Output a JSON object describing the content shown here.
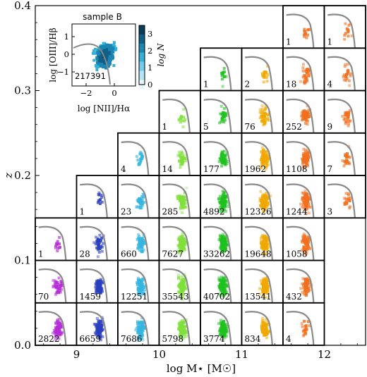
{
  "chart_data": {
    "type": "scatter",
    "title": "",
    "xlabel": "log M⋆ [M☉]",
    "ylabel": "z",
    "x_ticks": [
      "9",
      "10",
      "11",
      "12"
    ],
    "y_ticks": [
      "0.0",
      "0.1",
      "0.2",
      "0.3",
      "0.4"
    ],
    "xlim": [
      8.5,
      12.5
    ],
    "ylim": [
      0.0,
      0.4
    ],
    "x_bin_edges": [
      8.5,
      9.0,
      9.5,
      10.0,
      10.5,
      11.0,
      11.5,
      12.0,
      12.5
    ],
    "z_bin_edges": [
      0.0,
      0.05,
      0.1,
      0.15,
      0.2,
      0.25,
      0.3,
      0.35,
      0.4
    ],
    "cells": [
      {
        "col": 0,
        "row": 0,
        "count": "2822",
        "color": "#b52ed6"
      },
      {
        "col": 1,
        "row": 0,
        "count": "6659",
        "color": "#2a3fbf"
      },
      {
        "col": 2,
        "row": 0,
        "count": "7686",
        "color": "#35b6e0"
      },
      {
        "col": 3,
        "row": 0,
        "count": "5798",
        "color": "#7fe03a"
      },
      {
        "col": 4,
        "row": 0,
        "count": "3774",
        "color": "#1ec21e"
      },
      {
        "col": 5,
        "row": 0,
        "count": "834",
        "color": "#f0a800"
      },
      {
        "col": 6,
        "row": 0,
        "count": "4",
        "color": "#f07020"
      },
      {
        "col": 0,
        "row": 1,
        "count": "70",
        "color": "#b52ed6"
      },
      {
        "col": 1,
        "row": 1,
        "count": "1459",
        "color": "#2a3fbf"
      },
      {
        "col": 2,
        "row": 1,
        "count": "12251",
        "color": "#35b6e0"
      },
      {
        "col": 3,
        "row": 1,
        "count": "35543",
        "color": "#7fe03a"
      },
      {
        "col": 4,
        "row": 1,
        "count": "40702",
        "color": "#1ec21e"
      },
      {
        "col": 5,
        "row": 1,
        "count": "13541",
        "color": "#f0a800"
      },
      {
        "col": 6,
        "row": 1,
        "count": "432",
        "color": "#f07020"
      },
      {
        "col": 0,
        "row": 2,
        "count": "1",
        "color": "#b52ed6"
      },
      {
        "col": 1,
        "row": 2,
        "count": "28",
        "color": "#2a3fbf"
      },
      {
        "col": 2,
        "row": 2,
        "count": "660",
        "color": "#35b6e0"
      },
      {
        "col": 3,
        "row": 2,
        "count": "7627",
        "color": "#7fe03a"
      },
      {
        "col": 4,
        "row": 2,
        "count": "33262",
        "color": "#1ec21e"
      },
      {
        "col": 5,
        "row": 2,
        "count": "19648",
        "color": "#f0a800"
      },
      {
        "col": 6,
        "row": 2,
        "count": "1058",
        "color": "#f07020"
      },
      {
        "col": 1,
        "row": 3,
        "count": "1",
        "color": "#2a3fbf"
      },
      {
        "col": 2,
        "row": 3,
        "count": "23",
        "color": "#35b6e0"
      },
      {
        "col": 3,
        "row": 3,
        "count": "285",
        "color": "#7fe03a"
      },
      {
        "col": 4,
        "row": 3,
        "count": "4892",
        "color": "#1ec21e"
      },
      {
        "col": 5,
        "row": 3,
        "count": "12326",
        "color": "#f0a800"
      },
      {
        "col": 6,
        "row": 3,
        "count": "1244",
        "color": "#f07020"
      },
      {
        "col": 7,
        "row": 3,
        "count": "3",
        "color": "#f07020"
      },
      {
        "col": 2,
        "row": 4,
        "count": "4",
        "color": "#35b6e0"
      },
      {
        "col": 3,
        "row": 4,
        "count": "14",
        "color": "#7fe03a"
      },
      {
        "col": 4,
        "row": 4,
        "count": "177",
        "color": "#1ec21e"
      },
      {
        "col": 5,
        "row": 4,
        "count": "1962",
        "color": "#f0a800"
      },
      {
        "col": 6,
        "row": 4,
        "count": "1108",
        "color": "#f07020"
      },
      {
        "col": 7,
        "row": 4,
        "count": "7",
        "color": "#f07020"
      },
      {
        "col": 3,
        "row": 5,
        "count": "1",
        "color": "#7fe03a"
      },
      {
        "col": 4,
        "row": 5,
        "count": "5",
        "color": "#1ec21e"
      },
      {
        "col": 5,
        "row": 5,
        "count": "76",
        "color": "#f0a800"
      },
      {
        "col": 6,
        "row": 5,
        "count": "252",
        "color": "#f07020"
      },
      {
        "col": 7,
        "row": 5,
        "count": "9",
        "color": "#f07020"
      },
      {
        "col": 4,
        "row": 6,
        "count": "1",
        "color": "#1ec21e"
      },
      {
        "col": 5,
        "row": 6,
        "count": "2",
        "color": "#f0a800"
      },
      {
        "col": 6,
        "row": 6,
        "count": "18",
        "color": "#f07020"
      },
      {
        "col": 7,
        "row": 6,
        "count": "4",
        "color": "#f07020"
      },
      {
        "col": 6,
        "row": 7,
        "count": "1",
        "color": "#f07020"
      },
      {
        "col": 7,
        "row": 7,
        "count": "1",
        "color": "#f07020"
      }
    ],
    "inset": {
      "title": "sample B",
      "xlabel": "log [NII]/Hα",
      "ylabel": "log [OIII]/Hβ",
      "x_ticks": [
        "−2",
        "0"
      ],
      "y_ticks": [
        "1",
        "0",
        "−1"
      ],
      "count": "217391",
      "colorbar_label": "log N",
      "colorbar_ticks": [
        "3",
        "2",
        "1",
        "0"
      ],
      "colorbar_range": [
        0,
        3.5
      ],
      "color": "#35b6e0"
    }
  }
}
